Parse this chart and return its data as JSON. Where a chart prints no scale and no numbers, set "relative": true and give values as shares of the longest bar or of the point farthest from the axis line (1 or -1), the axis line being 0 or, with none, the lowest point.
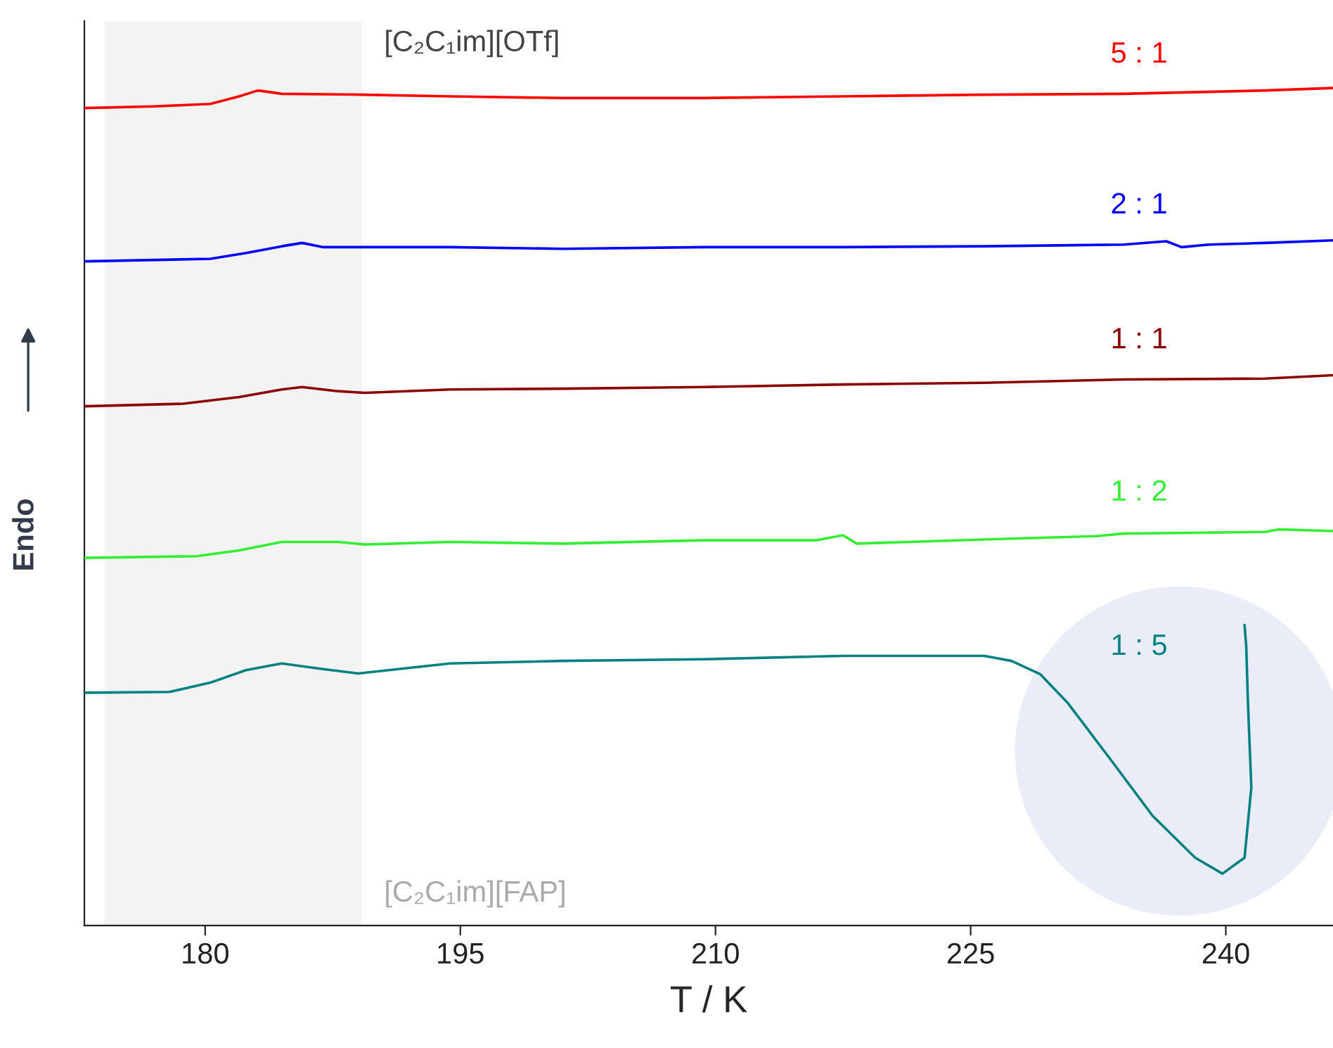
{
  "chart_data": {
    "type": "line",
    "relative": true,
    "xlabel": "T / K",
    "ylabel": "Endo",
    "xlim": [
      172.9,
      246.3
    ],
    "xticks": [
      180,
      195,
      210,
      225,
      240
    ],
    "grid": false,
    "line_style": "solid",
    "marker": "none",
    "tick_labels": "x",
    "bands": [
      {
        "axis": "x",
        "from": 174.1,
        "to": 189.2,
        "color": "#f3f3f3"
      }
    ],
    "annotations": [
      "[C₂C₁im][OTf]",
      "[C₂C₁im][FAP]"
    ],
    "series": [
      {
        "name": "5 : 1",
        "color": "#ff0000",
        "x": [
          172.9,
          177.0,
          180.3,
          182.0,
          183.1,
          184.5,
          189.2,
          194.4,
          201.0,
          209.3,
          217.5,
          225.8,
          234.0,
          242.3,
          246.3
        ],
        "values": [
          0.976,
          0.978,
          0.981,
          0.99,
          0.997,
          0.993,
          0.992,
          0.99,
          0.988,
          0.988,
          0.99,
          0.992,
          0.993,
          0.997,
          1.0
        ]
      },
      {
        "name": "2 : 1",
        "color": "#0000ff",
        "x": [
          172.9,
          180.3,
          182.4,
          184.5,
          185.7,
          186.9,
          194.4,
          201.0,
          209.3,
          217.5,
          225.8,
          234.0,
          236.5,
          237.4,
          239.0,
          242.3,
          246.3
        ],
        "values": [
          0.793,
          0.796,
          0.803,
          0.811,
          0.815,
          0.81,
          0.81,
          0.808,
          0.81,
          0.81,
          0.811,
          0.813,
          0.817,
          0.81,
          0.813,
          0.815,
          0.818
        ]
      },
      {
        "name": "1 : 1",
        "color": "#8b0000",
        "x": [
          172.9,
          178.7,
          182.0,
          184.5,
          185.7,
          187.8,
          189.4,
          194.4,
          201.0,
          209.3,
          217.5,
          225.8,
          234.0,
          242.3,
          246.3
        ],
        "values": [
          0.62,
          0.623,
          0.631,
          0.64,
          0.643,
          0.638,
          0.636,
          0.64,
          0.641,
          0.643,
          0.646,
          0.648,
          0.652,
          0.653,
          0.657
        ]
      },
      {
        "name": "1 : 2",
        "color": "#33ee33",
        "x": [
          172.9,
          179.5,
          182.0,
          184.5,
          187.8,
          189.4,
          194.4,
          201.0,
          209.3,
          215.9,
          217.5,
          218.3,
          225.8,
          232.4,
          234.0,
          242.3,
          243.1,
          246.3
        ],
        "values": [
          0.439,
          0.441,
          0.448,
          0.458,
          0.458,
          0.455,
          0.458,
          0.456,
          0.46,
          0.46,
          0.466,
          0.456,
          0.461,
          0.465,
          0.468,
          0.47,
          0.473,
          0.471
        ]
      },
      {
        "name": "1 : 5",
        "color": "#008080",
        "x": [
          172.9,
          177.9,
          180.3,
          182.4,
          184.5,
          187.0,
          189.0,
          194.4,
          201.0,
          209.3,
          217.5,
          225.8,
          227.4,
          229.1,
          230.7,
          233.2,
          235.7,
          238.2,
          239.8,
          241.1,
          241.5,
          241.3,
          241.2,
          241.1
        ],
        "values": [
          0.278,
          0.279,
          0.29,
          0.305,
          0.313,
          0.306,
          0.301,
          0.313,
          0.316,
          0.318,
          0.322,
          0.322,
          0.316,
          0.3,
          0.266,
          0.199,
          0.131,
          0.081,
          0.062,
          0.081,
          0.165,
          0.266,
          0.333,
          0.359
        ]
      }
    ]
  }
}
